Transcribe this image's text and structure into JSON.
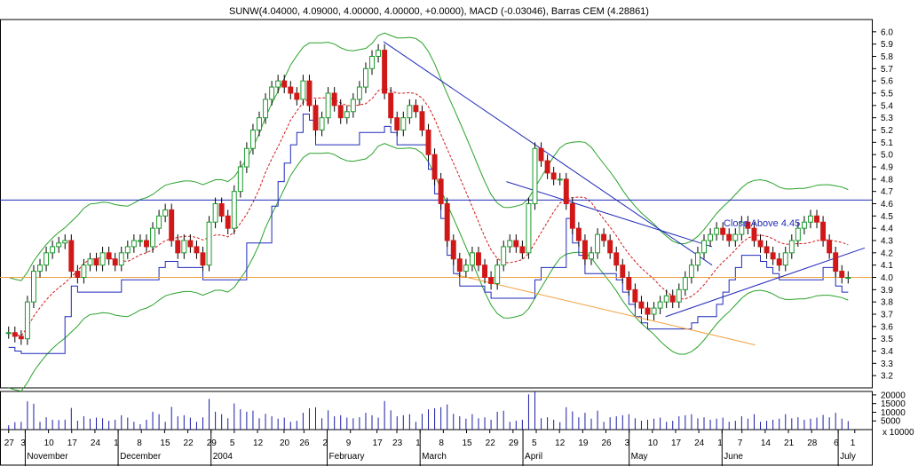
{
  "chart_data": {
    "type": "candlestick",
    "title": "SUNW(4.04000, 4.09000, 4.00000, 4.00000, +0.0000), MACD (-0.03046), Barras CEM (4.28861)",
    "price_axis": {
      "ylim": [
        3.1,
        6.1
      ],
      "ticks": [
        "3.2",
        "3.3",
        "3.4",
        "3.5",
        "3.6",
        "3.7",
        "3.8",
        "3.9",
        "4.0",
        "4.1",
        "4.2",
        "4.3",
        "4.4",
        "4.5",
        "4.6",
        "4.7",
        "4.8",
        "4.9",
        "5.0",
        "5.1",
        "5.2",
        "5.3",
        "5.4",
        "5.5",
        "5.6",
        "5.7",
        "5.8",
        "5.9",
        "6.0"
      ]
    },
    "volume_axis": {
      "ylim": [
        0,
        22000
      ],
      "ticks": [
        "5000",
        "10000",
        "15000",
        "20000"
      ],
      "unit_label": "x 10000"
    },
    "date_ticks": [
      {
        "label": "27",
        "day": 0
      },
      {
        "label": "3",
        "day": 5
      },
      {
        "label": "10",
        "day": 12
      },
      {
        "label": "17",
        "day": 19
      },
      {
        "label": "24",
        "day": 26
      },
      {
        "label": "1",
        "day": 33
      },
      {
        "label": "8",
        "day": 40
      },
      {
        "label": "15",
        "day": 47
      },
      {
        "label": "22",
        "day": 54
      },
      {
        "label": "29",
        "day": 61
      },
      {
        "label": "5",
        "day": 68
      },
      {
        "label": "12",
        "day": 75
      },
      {
        "label": "20",
        "day": 83
      },
      {
        "label": "26",
        "day": 89
      },
      {
        "label": "2",
        "day": 96
      },
      {
        "label": "9",
        "day": 103
      },
      {
        "label": "17",
        "day": 111
      },
      {
        "label": "23",
        "day": 117
      },
      {
        "label": "1",
        "day": 124
      },
      {
        "label": "8",
        "day": 131
      },
      {
        "label": "15",
        "day": 138
      },
      {
        "label": "22",
        "day": 145
      },
      {
        "label": "29",
        "day": 152
      },
      {
        "label": "5",
        "day": 159
      },
      {
        "label": "12",
        "day": 166
      },
      {
        "label": "19",
        "day": 173
      },
      {
        "label": "26",
        "day": 180
      },
      {
        "label": "3",
        "day": 187
      },
      {
        "label": "10",
        "day": 194
      },
      {
        "label": "17",
        "day": 201
      },
      {
        "label": "24",
        "day": 208
      },
      {
        "label": "1",
        "day": 215
      },
      {
        "label": "7",
        "day": 221
      },
      {
        "label": "14",
        "day": 228
      },
      {
        "label": "21",
        "day": 235
      },
      {
        "label": "28",
        "day": 242
      },
      {
        "label": "6",
        "day": 250
      },
      {
        "label": "1",
        "day": 255
      }
    ],
    "month_labels": [
      {
        "label": "November",
        "day": 5
      },
      {
        "label": "December",
        "day": 33
      },
      {
        "label": "2004",
        "day": 61
      },
      {
        "label": "February",
        "day": 96
      },
      {
        "label": "March",
        "day": 124
      },
      {
        "label": "April",
        "day": 155
      },
      {
        "label": "May",
        "day": 187
      },
      {
        "label": "June",
        "day": 215
      },
      {
        "label": "July",
        "day": 250
      }
    ],
    "closes": [
      3.55,
      3.52,
      3.5,
      3.8,
      4.05,
      4.1,
      4.2,
      4.25,
      4.28,
      4.3,
      4.05,
      4.0,
      4.1,
      4.15,
      4.1,
      4.2,
      4.15,
      4.1,
      4.2,
      4.25,
      4.3,
      4.3,
      4.25,
      4.4,
      4.5,
      4.55,
      4.3,
      4.2,
      4.3,
      4.25,
      4.2,
      4.1,
      4.45,
      4.6,
      4.5,
      4.4,
      4.7,
      4.9,
      5.05,
      5.2,
      5.3,
      5.45,
      5.55,
      5.6,
      5.55,
      5.5,
      5.45,
      5.6,
      5.4,
      5.2,
      5.3,
      5.5,
      5.4,
      5.3,
      5.35,
      5.45,
      5.55,
      5.7,
      5.8,
      5.85,
      5.5,
      5.3,
      5.2,
      5.3,
      5.4,
      5.35,
      5.2,
      5.0,
      4.8,
      4.6,
      4.3,
      4.15,
      4.05,
      4.1,
      4.2,
      4.1,
      4.0,
      3.95,
      4.1,
      4.25,
      4.3,
      4.25,
      4.2,
      4.6,
      5.05,
      4.95,
      4.85,
      4.8,
      4.8,
      4.6,
      4.4,
      4.3,
      4.15,
      4.2,
      4.35,
      4.3,
      4.2,
      4.1,
      4.0,
      3.9,
      3.8,
      3.75,
      3.7,
      3.75,
      3.8,
      3.85,
      3.8,
      3.9,
      4.0,
      4.1,
      4.2,
      4.3,
      4.35,
      4.4,
      4.35,
      4.3,
      4.35,
      4.45,
      4.4,
      4.3,
      4.25,
      4.2,
      4.15,
      4.1,
      4.2,
      4.3,
      4.4,
      4.45,
      4.5,
      4.45,
      4.3,
      4.2,
      4.05,
      4.0,
      4.0
    ],
    "extra_closes_note": "",
    "bollinger_width": 0.45,
    "horizontal_lines": [
      {
        "value": 4.63,
        "color": "#1f2ab8"
      },
      {
        "value": 4.0,
        "color": "#f0a040"
      }
    ],
    "trendlines": [
      {
        "from": {
          "day": 113,
          "value": 5.92
        },
        "to": {
          "day": 212,
          "value": 4.1
        },
        "color": "#1f2ab8"
      },
      {
        "from": {
          "day": 150,
          "value": 4.78
        },
        "to": {
          "day": 212,
          "value": 4.25
        },
        "color": "#1f2ab8"
      },
      {
        "from": {
          "day": 198,
          "value": 3.68
        },
        "to": {
          "day": 258,
          "value": 4.24
        },
        "color": "#1f2ab8"
      },
      {
        "from": {
          "day": 135,
          "value": 4.02
        },
        "to": {
          "day": 225,
          "value": 3.45
        },
        "color": "#f0a040"
      }
    ],
    "annotation": {
      "text": "Close Above 4.45",
      "day": 216,
      "value": 4.38
    }
  },
  "colors": {
    "up": "#1a9a2a",
    "down": "#d01818",
    "blue": "#1f2ab8",
    "bb": "#2aa22a",
    "ma": "#d01818",
    "orange": "#f0a040"
  }
}
